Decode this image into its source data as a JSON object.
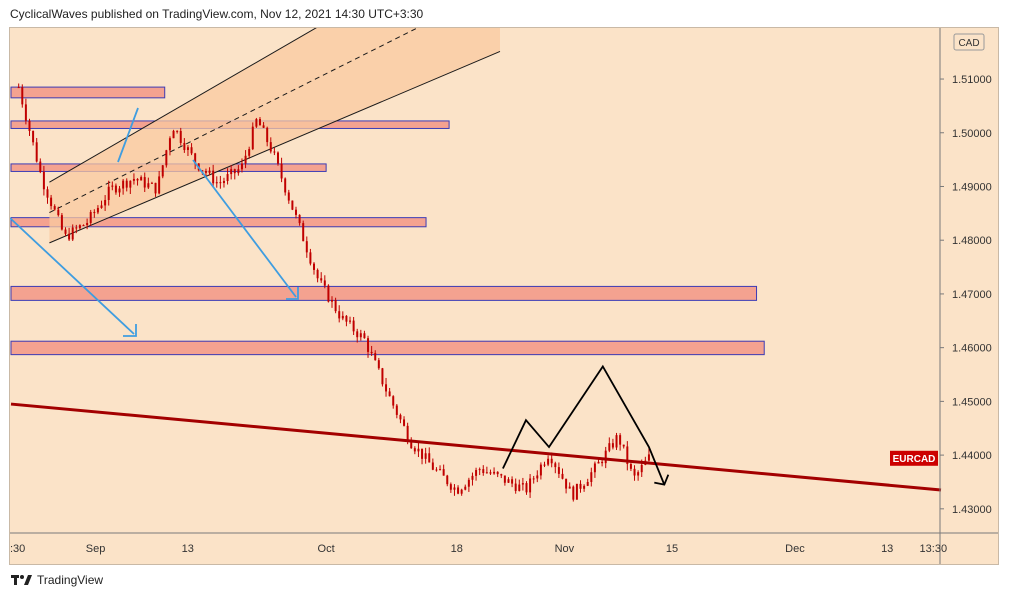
{
  "header": {
    "text": "CyclicalWaves published on TradingView.com, Nov 12, 2021 14:30 UTC+3:30"
  },
  "footer": {
    "logo_icon": "tradingview-logo-icon",
    "text": "TradingView"
  },
  "colors": {
    "background": "#fbe3c8",
    "candle": "#c00000",
    "zone_fill": "#f4a290",
    "zone_border": "#3b3bb5",
    "channel_fill": "#f9caa0",
    "trendline": "#a30000",
    "blue_arrow": "#3f9de0",
    "pattern": "#000000",
    "symbol_badge": "#cc0000"
  },
  "chart_data": {
    "type": "line",
    "symbol": "EURCAD",
    "currency": "CAD",
    "ylim": [
      1.4255,
      1.5195
    ],
    "y_ticks": [
      "1.51000",
      "1.50000",
      "1.49000",
      "1.48000",
      "1.47000",
      "1.46000",
      "1.45000",
      "1.44000",
      "1.43000"
    ],
    "x_ticks": [
      ":30",
      "Sep",
      "13",
      "Oct",
      "18",
      "Nov",
      "15",
      "Dec",
      "13",
      "13:30"
    ],
    "grid": false,
    "series": [
      {
        "x": [
          "Aug 22",
          "Aug 25",
          "Aug 28",
          "Aug 31",
          "Sep 3",
          "Sep 6",
          "Sep 9",
          "Sep 11",
          "Sep 14",
          "Sep 17",
          "Sep 20",
          "Sep 22",
          "Sep 24",
          "Sep 27",
          "Sep 30",
          "Oct 3",
          "Oct 6",
          "Oct 9",
          "Oct 12",
          "Oct 15",
          "Oct 18",
          "Oct 21",
          "Oct 24",
          "Oct 27",
          "Oct 30",
          "Nov 2",
          "Nov 5",
          "Nov 8",
          "Nov 10",
          "Nov 12"
        ],
        "values": [
          1.5085,
          1.4915,
          1.4805,
          1.4835,
          1.4895,
          1.4915,
          1.4895,
          1.5015,
          1.4945,
          1.4905,
          1.4935,
          1.5025,
          1.4965,
          1.4845,
          1.4725,
          1.4655,
          1.4615,
          1.4515,
          1.4425,
          1.4375,
          1.4335,
          1.4375,
          1.4355,
          1.4335,
          1.4405,
          1.4325,
          1.4375,
          1.4435,
          1.4355,
          1.4395
        ]
      }
    ],
    "annotations": {
      "symbol_badge": "EURCAD",
      "resistance_zones": [
        {
          "from": "Aug 21",
          "to": "Sep 10",
          "low": 1.5065,
          "high": 1.5085
        },
        {
          "from": "Aug 21",
          "to": "Oct 17",
          "low": 1.5008,
          "high": 1.5022
        },
        {
          "from": "Aug 21",
          "to": "Oct 1",
          "low": 1.4928,
          "high": 1.4942
        },
        {
          "from": "Aug 21",
          "to": "Oct 14",
          "low": 1.4825,
          "high": 1.4842
        },
        {
          "from": "Aug 21",
          "to": "Nov 26",
          "low": 1.4688,
          "high": 1.4714
        },
        {
          "from": "Aug 21",
          "to": "Nov 27",
          "low": 1.4587,
          "high": 1.4612
        }
      ],
      "rising_channel": {
        "lower": [
          [
            "Aug 26",
            1.4795
          ],
          [
            "Sep 20",
            1.4947
          ]
        ],
        "upper": [
          [
            "Aug 26",
            1.4908
          ],
          [
            "Sep 20",
            1.5115
          ]
        ]
      },
      "falling_trendline": [
        [
          "Aug 21",
          1.4495
        ],
        [
          "Dec 20",
          1.4335
        ]
      ],
      "projected_path": [
        [
          "Oct 24",
          1.4375
        ],
        [
          "Oct 27",
          1.4465
        ],
        [
          "Oct 30",
          1.4415
        ],
        [
          "Nov 6",
          1.4565
        ],
        [
          "Nov 12",
          1.4415
        ],
        [
          "Nov 14",
          1.4345
        ]
      ]
    }
  }
}
